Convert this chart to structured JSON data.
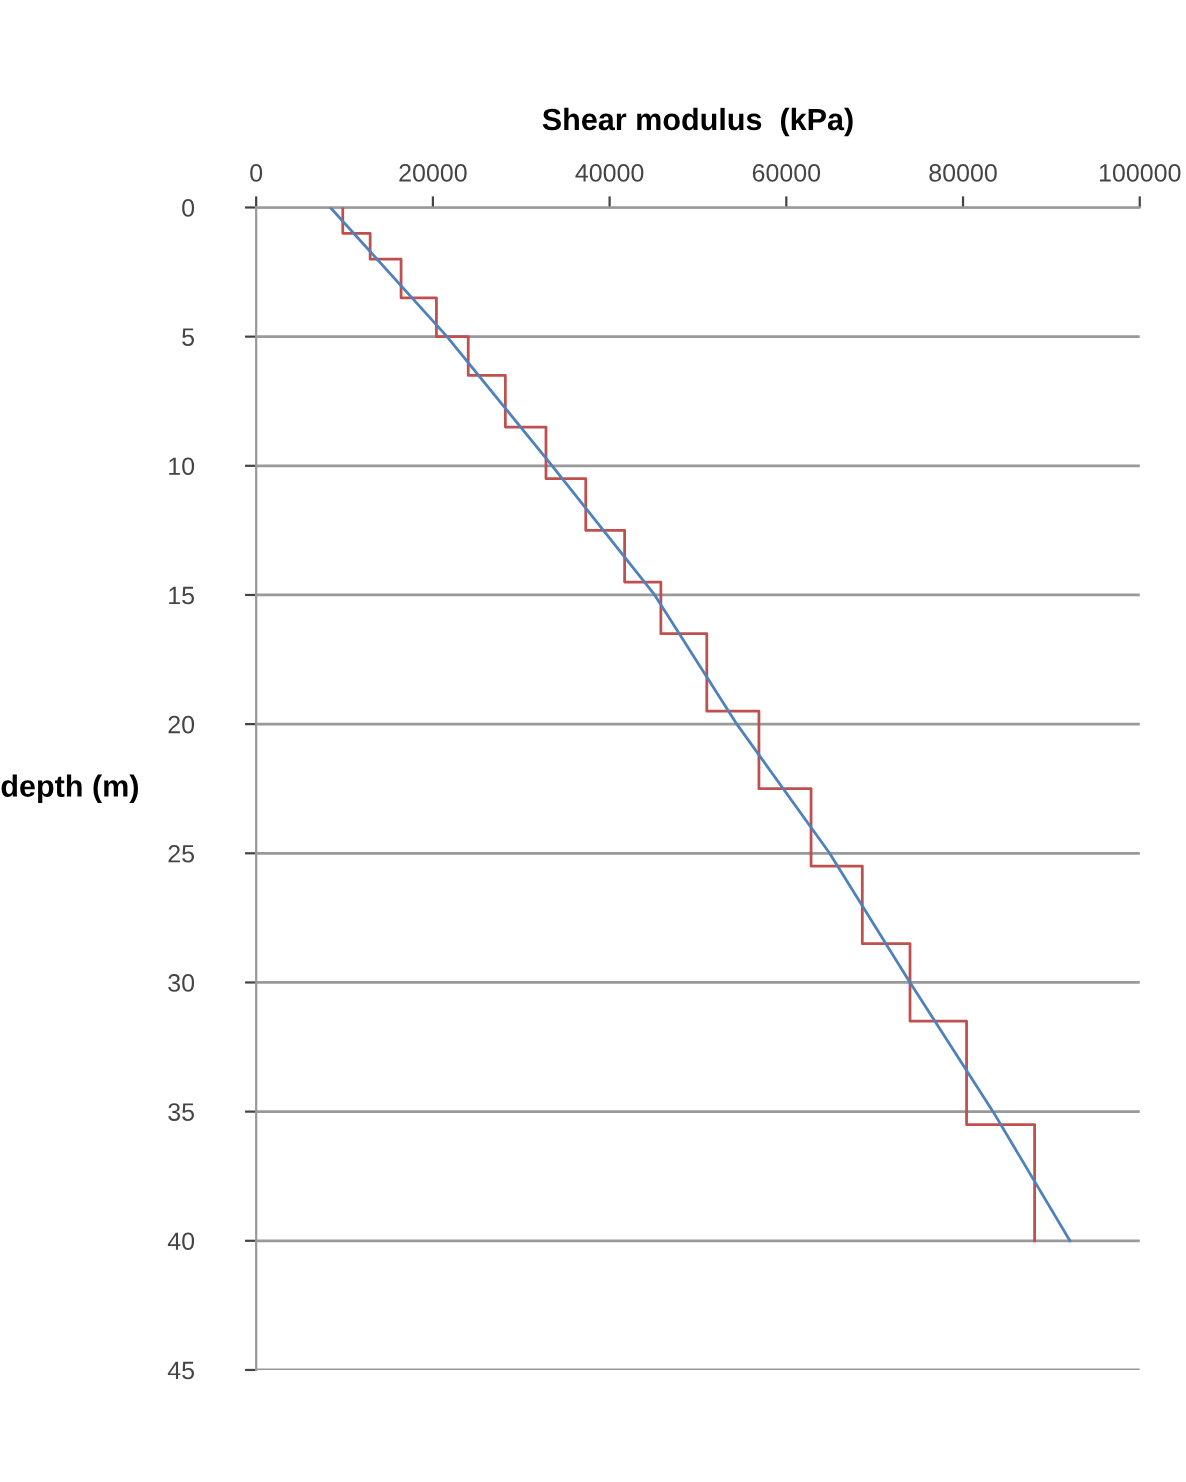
{
  "chart_data": {
    "type": "line",
    "xlabel": "Shear modulus  (kPa)",
    "ylabel": "depth (m)",
    "xlim": [
      0,
      100000
    ],
    "xticks": [
      0,
      20000,
      40000,
      60000,
      80000,
      100000
    ],
    "ylim": [
      45,
      0
    ],
    "yticks": [
      0,
      5,
      10,
      15,
      20,
      25,
      30,
      35,
      40,
      45
    ],
    "grid": "y",
    "marker": "none",
    "line_style": "solid",
    "series": [
      {
        "color": "#c0504d",
        "x": [
          9800,
          9800,
          12900,
          12900,
          16400,
          16400,
          20400,
          20400,
          24000,
          24000,
          28200,
          28200,
          32800,
          32800,
          37300,
          37300,
          41700,
          41700,
          45800,
          45800,
          51000,
          51000,
          56900,
          56900,
          62800,
          62800,
          68600,
          68600,
          74000,
          74000,
          80400,
          80400,
          88100,
          88100
        ],
        "values": [
          0,
          1,
          1,
          2,
          2,
          3.5,
          3.5,
          5,
          5,
          6.5,
          6.5,
          8.5,
          8.5,
          10.5,
          10.5,
          12.5,
          12.5,
          14.5,
          14.5,
          16.5,
          16.5,
          19.5,
          19.5,
          22.5,
          22.5,
          25.5,
          25.5,
          28.5,
          28.5,
          31.5,
          31.5,
          35.5,
          35.5,
          40
        ]
      },
      {
        "color": "#4f81bd",
        "x": [
          8400,
          21600,
          33500,
          45100,
          54400,
          64900,
          74000,
          83400,
          92100
        ],
        "values": [
          0,
          5,
          10,
          15,
          20,
          25,
          30,
          35,
          40
        ]
      }
    ]
  }
}
